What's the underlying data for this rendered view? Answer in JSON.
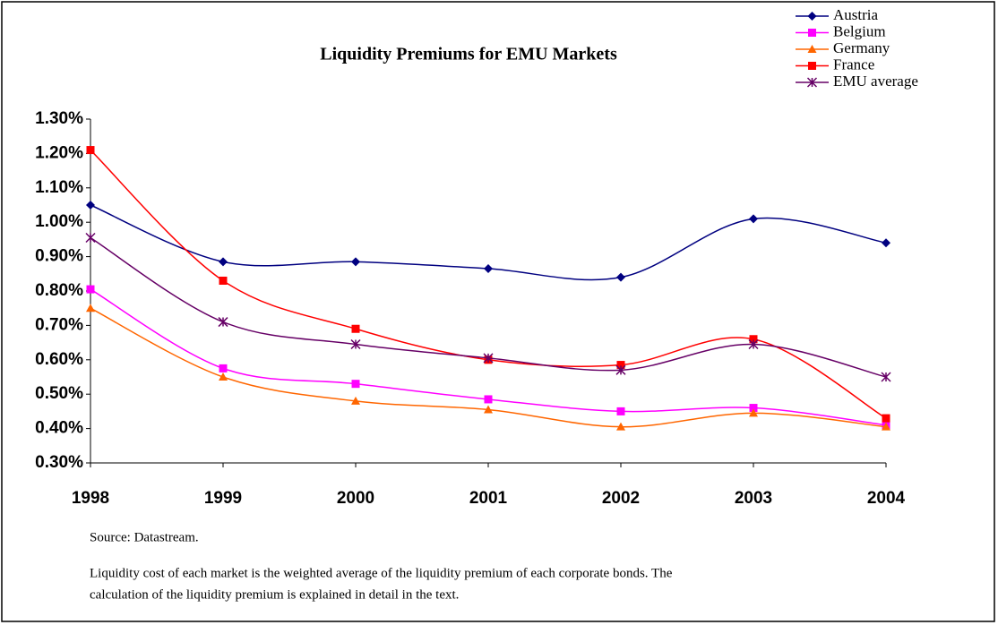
{
  "chart_data": {
    "type": "line",
    "title": "Liquidity Premiums for EMU Markets",
    "categories": [
      "1998",
      "1999",
      "2000",
      "2001",
      "2002",
      "2003",
      "2004"
    ],
    "series": [
      {
        "name": "Austria",
        "color": "#000080",
        "marker": "diamond",
        "values": [
          1.05,
          0.885,
          0.885,
          0.865,
          0.84,
          1.01,
          0.94
        ]
      },
      {
        "name": "Belgium",
        "color": "#ff00ff",
        "marker": "square",
        "values": [
          0.805,
          0.575,
          0.53,
          0.485,
          0.45,
          0.46,
          0.41
        ]
      },
      {
        "name": "Germany",
        "color": "#ff6600",
        "marker": "triangle",
        "values": [
          0.75,
          0.55,
          0.48,
          0.455,
          0.405,
          0.445,
          0.405
        ]
      },
      {
        "name": "France",
        "color": "#ff0000",
        "marker": "square",
        "values": [
          1.21,
          0.83,
          0.69,
          0.6,
          0.585,
          0.66,
          0.43
        ]
      },
      {
        "name": "EMU average",
        "color": "#660066",
        "marker": "star",
        "values": [
          0.955,
          0.71,
          0.645,
          0.605,
          0.57,
          0.645,
          0.55
        ]
      }
    ],
    "ylim": [
      0.3,
      1.3
    ],
    "yticks": [
      {
        "value": 0.3,
        "label": "0.30%"
      },
      {
        "value": 0.4,
        "label": "0.40%"
      },
      {
        "value": 0.5,
        "label": "0.50%"
      },
      {
        "value": 0.6,
        "label": "0.60%"
      },
      {
        "value": 0.7,
        "label": "0.70%"
      },
      {
        "value": 0.8,
        "label": "0.80%"
      },
      {
        "value": 0.9,
        "label": "0.90%"
      },
      {
        "value": 1.0,
        "label": "1.00%"
      },
      {
        "value": 1.1,
        "label": "1.10%"
      },
      {
        "value": 1.2,
        "label": "1.20%"
      },
      {
        "value": 1.3,
        "label": "1.30%"
      }
    ],
    "grid": false,
    "legend": "top-right",
    "notes": [
      "Source: Datastream.",
      "Liquidity cost of each market  is the weighted average of the liquidity premium of each  corporate bonds.  The",
      "calculation of the liquidity premium is explained in detail  in the text."
    ]
  }
}
